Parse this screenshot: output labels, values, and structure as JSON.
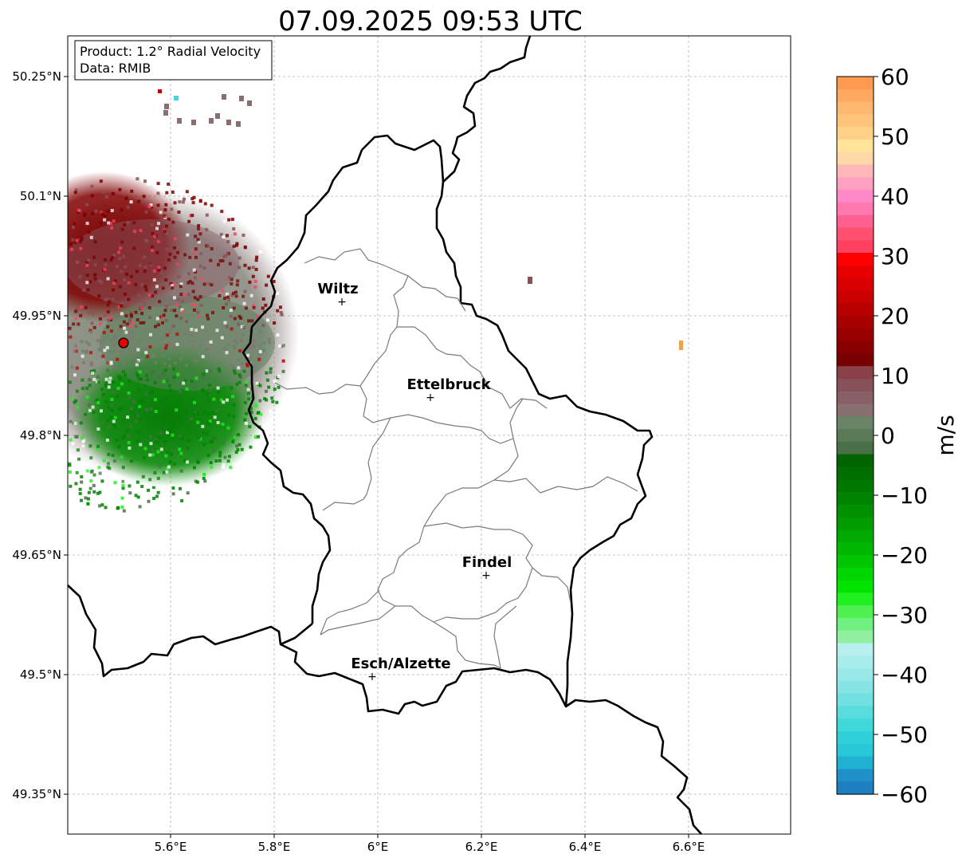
{
  "title": "07.09.2025 09:53 UTC",
  "info": {
    "product": "Product: 1.2° Radial Velocity",
    "data_source": "Data: RMIB"
  },
  "axes": {
    "lat_ticks": [
      "50.25°N",
      "50.1°N",
      "49.95°N",
      "49.8°N",
      "49.65°N",
      "49.5°N",
      "49.35°N"
    ],
    "lon_ticks": [
      "5.6°E",
      "5.8°E",
      "6°E",
      "6.2°E",
      "6.4°E",
      "6.6°E"
    ]
  },
  "cities": [
    {
      "name": "Wiltz"
    },
    {
      "name": "Ettelbruck"
    },
    {
      "name": "Findel"
    },
    {
      "name": "Esch/Alzette"
    }
  ],
  "colorbar": {
    "label": "m/s",
    "min": -60,
    "max": 60,
    "ticks": [
      "60",
      "50",
      "40",
      "30",
      "20",
      "10",
      "0",
      "−10",
      "−20",
      "−30",
      "−40",
      "−50",
      "−60"
    ],
    "colors_top_to_bottom": [
      "#ff9a50",
      "#ffa860",
      "#ffb870",
      "#ffc47c",
      "#ffd288",
      "#ffe49a",
      "#ffd8a8",
      "#ffb8b8",
      "#ffa0c0",
      "#ff88c8",
      "#ff78b0",
      "#ff6090",
      "#ff5070",
      "#ff4060",
      "#ff0000",
      "#e80000",
      "#d80000",
      "#c80000",
      "#b80000",
      "#a80000",
      "#980000",
      "#880000",
      "#780000",
      "#8a4048",
      "#885058",
      "#886068",
      "#887070",
      "#6a8468",
      "#5a7a58",
      "#4a7048",
      "#006400",
      "#006e00",
      "#007800",
      "#008400",
      "#009000",
      "#009c00",
      "#00aa00",
      "#00b800",
      "#00c600",
      "#00d600",
      "#00e400",
      "#20f020",
      "#50f050",
      "#70f080",
      "#90f0a0",
      "#b8f0f0",
      "#a8ecec",
      "#98e8e8",
      "#88e4e4",
      "#70e0e0",
      "#58dcdc",
      "#40d8d8",
      "#30d0d8",
      "#28c8d8",
      "#20b0d0",
      "#2090c8",
      "#1e7fc0"
    ]
  },
  "radar_site_color": "#e80000"
}
